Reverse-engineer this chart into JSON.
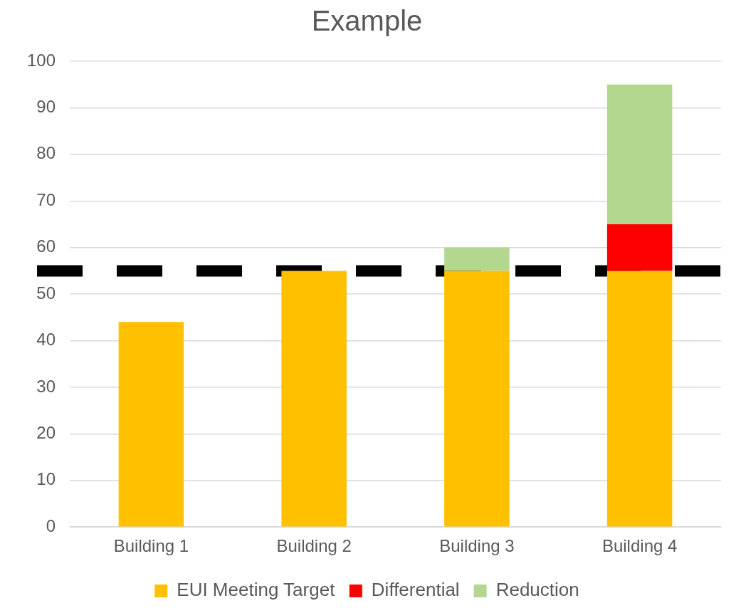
{
  "chart_data": {
    "type": "bar",
    "title": "Example",
    "stacked": true,
    "categories": [
      "Building 1",
      "Building 2",
      "Building 3",
      "Building 4"
    ],
    "series": [
      {
        "name": "EUI Meeting Target",
        "color": "#ffc000",
        "values": [
          44,
          55,
          55,
          55
        ]
      },
      {
        "name": "Differential",
        "color": "#ff0000",
        "values": [
          0,
          0,
          0,
          10
        ]
      },
      {
        "name": "Reduction",
        "color": "#b3d78e",
        "values": [
          0,
          0,
          5,
          30
        ]
      }
    ],
    "ylim": [
      0,
      100
    ],
    "yticks": [
      0,
      10,
      20,
      30,
      40,
      50,
      60,
      70,
      80,
      90,
      100
    ],
    "grid": "y",
    "legend": "bottom",
    "ref_lines": [
      {
        "axis": "y",
        "value": 55,
        "color": "#000000",
        "line_style": "dashed"
      }
    ]
  }
}
